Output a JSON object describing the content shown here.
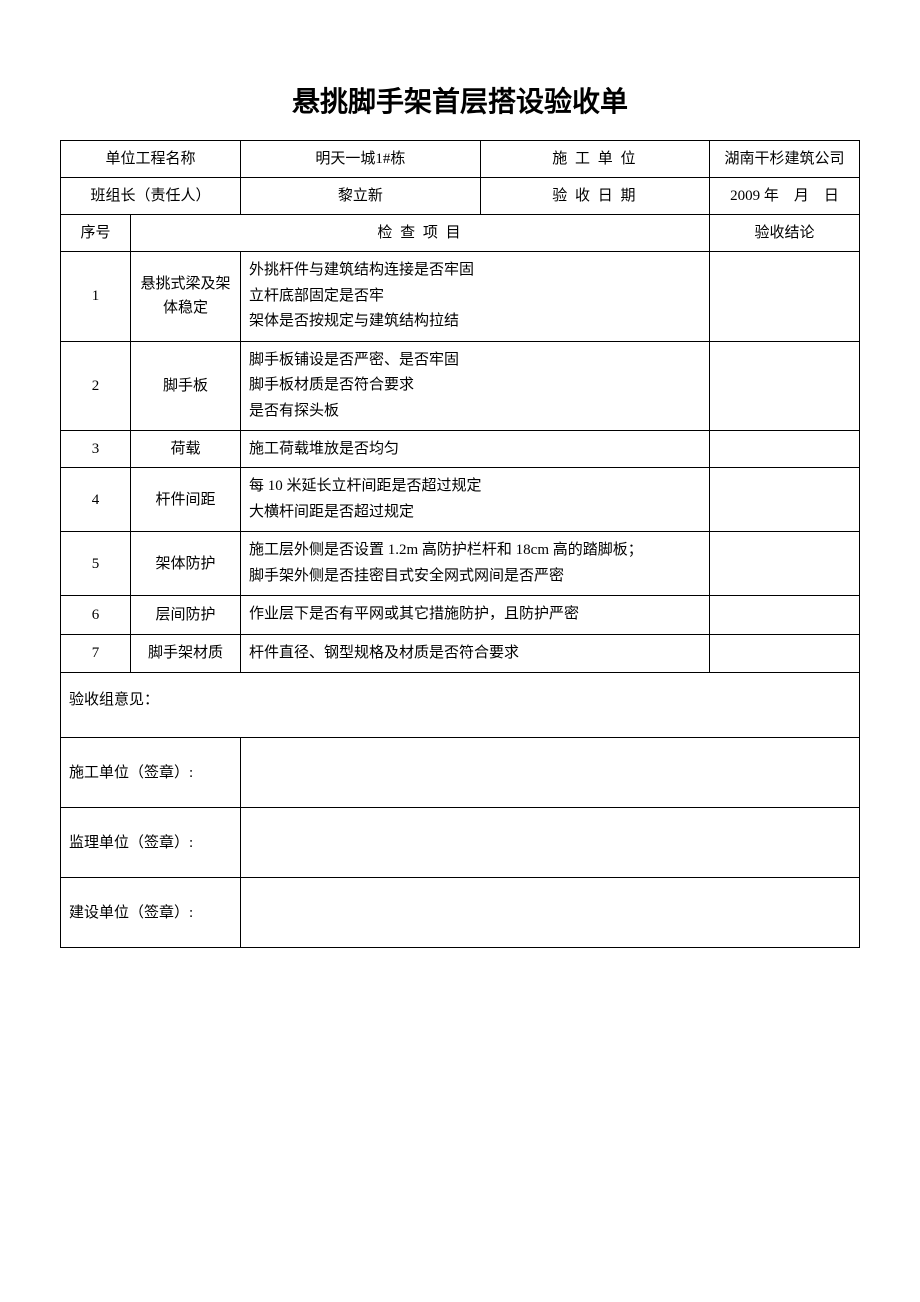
{
  "title": "悬挑脚手架首层搭设验收单",
  "header": {
    "project_name_label": "单位工程名称",
    "project_name_value": "明天一城1#栋",
    "construction_unit_label": "施 工 单 位",
    "construction_unit_value": "湖南干杉建筑公司",
    "team_leader_label": "班组长（责任人）",
    "team_leader_value": "黎立新",
    "acceptance_date_label": "验 收 日 期",
    "acceptance_date_value": "2009 年　月　日"
  },
  "columns": {
    "seq": "序号",
    "inspection_item": "检 查 项 目",
    "conclusion": "验收结论"
  },
  "rows": [
    {
      "seq": "1",
      "item": "悬挑式梁及架体稳定",
      "content": "外挑杆件与建筑结构连接是否牢固\n立杆底部固定是否牢\n架体是否按规定与建筑结构拉结"
    },
    {
      "seq": "2",
      "item": "脚手板",
      "content": "脚手板铺设是否严密、是否牢固\n脚手板材质是否符合要求\n是否有探头板"
    },
    {
      "seq": "3",
      "item": "荷载",
      "content": "施工荷载堆放是否均匀"
    },
    {
      "seq": "4",
      "item": "杆件间距",
      "content": "每 10 米延长立杆间距是否超过规定\n大横杆间距是否超过规定"
    },
    {
      "seq": "5",
      "item": "架体防护",
      "content": "施工层外侧是否设置 1.2m 高防护栏杆和 18cm 高的踏脚板；\n脚手架外侧是否挂密目式安全网式网间是否严密"
    },
    {
      "seq": "6",
      "item": "层间防护",
      "content": "作业层下是否有平网或其它措施防护，且防护严密"
    },
    {
      "seq": "7",
      "item": "脚手架材质",
      "content": "杆件直径、钢型规格及材质是否符合要求"
    }
  ],
  "opinion_label": "验收组意见：",
  "signatures": {
    "construction": "施工单位（签章）:",
    "supervision": "监理单位（签章）:",
    "owner": "建设单位（签章）:"
  }
}
